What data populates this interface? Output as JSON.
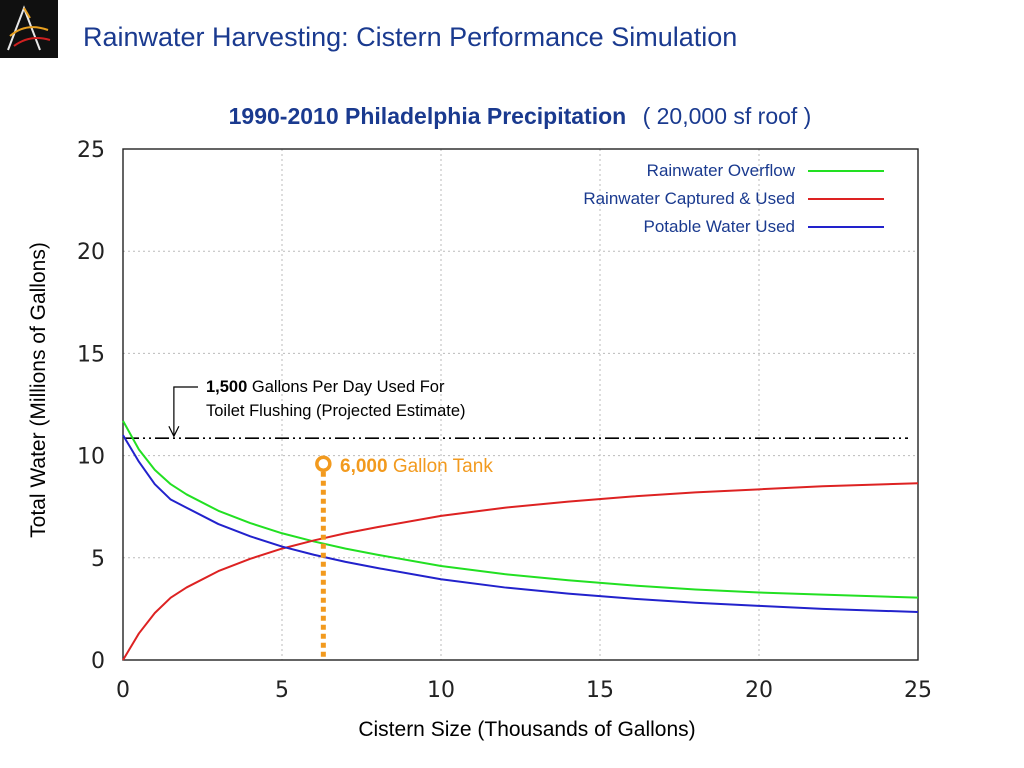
{
  "slide": {
    "title": "Rainwater Harvesting: Cistern Performance Simulation"
  },
  "colors": {
    "title": "#1a3a8f",
    "logo_bg": "#101010",
    "overflow": "#22e022",
    "captured": "#dd2222",
    "potable": "#2222cc",
    "tank_marker": "#f29a1e",
    "grid": "#bbbbbb"
  },
  "logo": {
    "icon": "stylized-a-logo-icon"
  },
  "chart_data": {
    "type": "line",
    "title_bold": "1990-2010  Philadelphia Precipitation",
    "title_suffix": "( 20,000 sf roof )",
    "xlabel": "Cistern Size (Thousands of Gallons)",
    "ylabel": "Total Water (Millions of Gallons)",
    "xlim": [
      0,
      25
    ],
    "ylim": [
      0,
      25
    ],
    "xticks": [
      "0",
      "5",
      "10",
      "15",
      "20",
      "25"
    ],
    "yticks": [
      "0",
      "5",
      "10",
      "15",
      "20",
      "25"
    ],
    "grid": true,
    "legend_position": "top-right",
    "series": [
      {
        "name": "Rainwater Overflow",
        "color": "#22e022",
        "x": [
          0,
          0.5,
          1,
          1.5,
          2,
          3,
          4,
          5,
          6,
          7,
          8,
          10,
          12,
          14,
          16,
          18,
          20,
          22,
          25
        ],
        "y": [
          11.7,
          10.3,
          9.3,
          8.6,
          8.1,
          7.3,
          6.7,
          6.2,
          5.8,
          5.45,
          5.15,
          4.6,
          4.2,
          3.9,
          3.65,
          3.45,
          3.3,
          3.2,
          3.05
        ]
      },
      {
        "name": "Rainwater Captured & Used",
        "color": "#dd2222",
        "x": [
          0,
          0.5,
          1,
          1.5,
          2,
          3,
          4,
          5,
          6,
          7,
          8,
          10,
          12,
          14,
          16,
          18,
          20,
          22,
          25
        ],
        "y": [
          0,
          1.3,
          2.3,
          3.05,
          3.55,
          4.35,
          4.95,
          5.45,
          5.85,
          6.2,
          6.5,
          7.05,
          7.45,
          7.75,
          8.0,
          8.2,
          8.35,
          8.5,
          8.65
        ]
      },
      {
        "name": "Potable Water Used",
        "color": "#2222cc",
        "x": [
          0,
          0.5,
          1,
          1.5,
          2,
          3,
          4,
          5,
          6,
          7,
          8,
          10,
          12,
          14,
          16,
          18,
          20,
          22,
          25
        ],
        "y": [
          11.0,
          9.7,
          8.6,
          7.85,
          7.45,
          6.65,
          6.05,
          5.55,
          5.15,
          4.8,
          4.5,
          3.95,
          3.55,
          3.25,
          3.0,
          2.8,
          2.65,
          2.5,
          2.35
        ]
      }
    ],
    "reference_line": {
      "y": 10.85,
      "label_bold": "1,500",
      "label_rest_line1": " Gallons Per Day Used For",
      "label_line2": "Toilet Flushing (Projected Estimate)",
      "arrow_x": 1.6
    },
    "marker": {
      "x": 6.3,
      "y": 9.6,
      "label_bold": "6,000",
      "label_rest": " Gallon Tank"
    }
  }
}
